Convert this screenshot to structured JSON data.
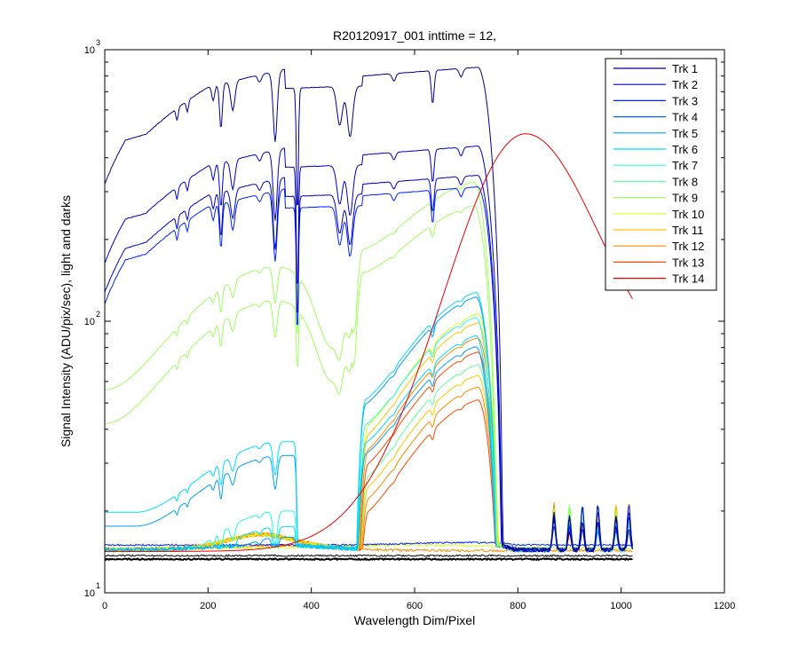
{
  "chart_data": {
    "type": "line",
    "title": "R20120917_001 inttime = 12,",
    "xlabel": "Wavelength Dim/Pixel",
    "ylabel": "Signal Intensity (ADU/pix/sec), light and darks",
    "xlim": [
      0,
      1200
    ],
    "ylim": [
      10,
      1000
    ],
    "yscale": "log",
    "grid": false,
    "legend_position": "top-right",
    "x_ticks": [
      0,
      200,
      400,
      600,
      800,
      1000,
      1200
    ],
    "x_tick_labels": [
      "0",
      "200",
      "400",
      "600",
      "800",
      "1000",
      "1200"
    ],
    "y_ticks": [
      {
        "value": 10,
        "base": "10",
        "exp": "1"
      },
      {
        "value": 100,
        "base": "10",
        "exp": "2"
      },
      {
        "value": 1000,
        "base": "10",
        "exp": "3"
      }
    ],
    "series": [
      {
        "name": "Trk 1",
        "color": "#00008f"
      },
      {
        "name": "Trk 2",
        "color": "#0000c8"
      },
      {
        "name": "Trk 3",
        "color": "#0024ff"
      },
      {
        "name": "Trk 4",
        "color": "#0062ff"
      },
      {
        "name": "Trk 5",
        "color": "#00a0ff"
      },
      {
        "name": "Trk 6",
        "color": "#00ddff"
      },
      {
        "name": "Trk 7",
        "color": "#24ffdb"
      },
      {
        "name": "Trk 8",
        "color": "#62ff9d"
      },
      {
        "name": "Trk 9",
        "color": "#a0ff5f"
      },
      {
        "name": "Trk 10",
        "color": "#ddff22"
      },
      {
        "name": "Trk 11",
        "color": "#ffc800"
      },
      {
        "name": "Trk 12",
        "color": "#ff8a00"
      },
      {
        "name": "Trk 13",
        "color": "#ff4c00"
      },
      {
        "name": "Trk 14",
        "color": "#e80000"
      }
    ]
  }
}
